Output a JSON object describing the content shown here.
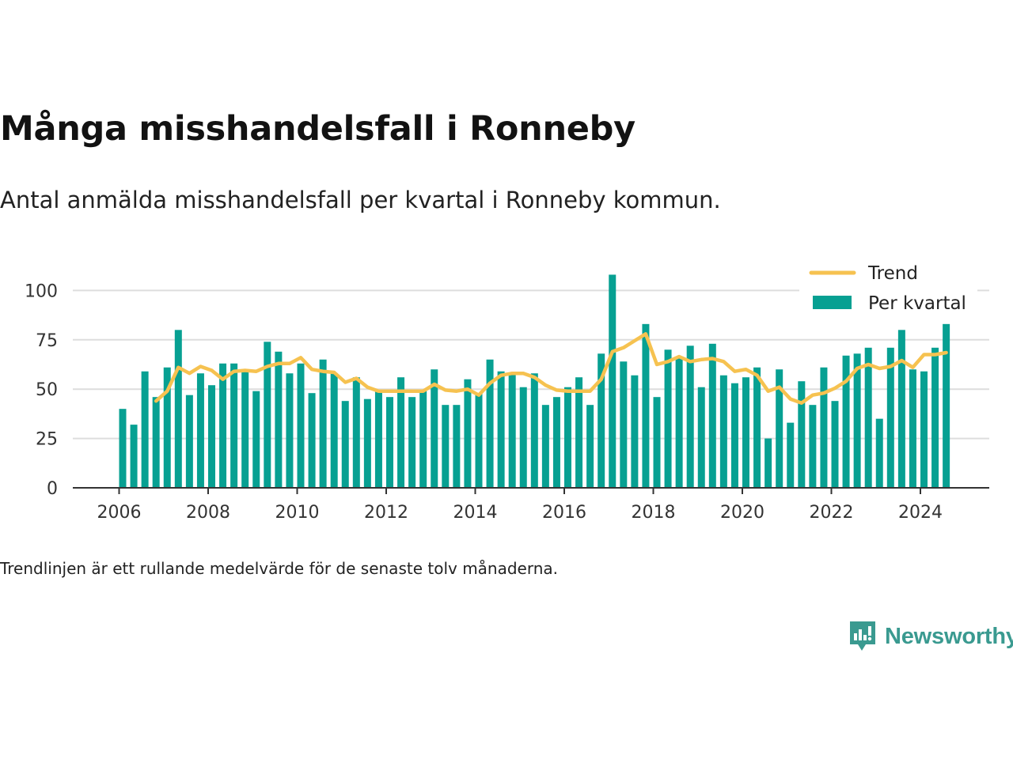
{
  "title": "Många misshandelsfall i Ronneby",
  "subtitle": "Antal anmälda misshandelsfall per kvartal i Ronneby kommun.",
  "footnote": "Trendlinjen är ett rullande medelvärde för de senaste tolv månaderna.",
  "brand": {
    "name": "Newsworthy",
    "icon": "newsworthy-logo-icon"
  },
  "colors": {
    "bars": "#07a092",
    "trend": "#f6c250",
    "grid": "#dddddd",
    "axis": "#333333"
  },
  "chart_data": {
    "type": "bar",
    "title": "Många misshandelsfall i Ronneby",
    "xlabel": "",
    "ylabel": "",
    "ylim": [
      0,
      110
    ],
    "yticks": [
      0,
      25,
      50,
      75,
      100
    ],
    "xticks": [
      "2006",
      "2008",
      "2010",
      "2012",
      "2014",
      "2016",
      "2018",
      "2020",
      "2022",
      "2024"
    ],
    "grid": true,
    "legend_position": "top-right",
    "x_start": {
      "year": 2006,
      "quarter": 1
    },
    "series": [
      {
        "name": "Per kvartal",
        "type": "bar",
        "values": [
          40,
          32,
          59,
          46,
          61,
          80,
          47,
          58,
          52,
          63,
          63,
          60,
          49,
          74,
          69,
          58,
          63,
          48,
          65,
          58,
          44,
          56,
          45,
          49,
          46,
          56,
          46,
          49,
          60,
          42,
          42,
          55,
          48,
          65,
          59,
          58,
          51,
          58,
          42,
          46,
          51,
          56,
          42,
          68,
          108,
          64,
          57,
          83,
          46,
          70,
          66,
          72,
          51,
          73,
          57,
          53,
          56,
          61,
          25,
          60,
          33,
          54,
          42,
          61,
          44,
          67,
          68,
          71,
          35,
          71,
          80,
          60,
          59,
          71,
          83
        ]
      },
      {
        "name": "Trend",
        "type": "line",
        "values": [
          null,
          null,
          null,
          44,
          49,
          61,
          58,
          61.5,
          59.5,
          55,
          59,
          59.5,
          59,
          61.5,
          63,
          63,
          66,
          60,
          59,
          58.5,
          53.5,
          55.5,
          51,
          49,
          49,
          49,
          49,
          49,
          52.5,
          49.5,
          49,
          50,
          47,
          53,
          57,
          58,
          58,
          56,
          52,
          49.5,
          49,
          49,
          49,
          55,
          69,
          71,
          74.5,
          78,
          62.5,
          64,
          66.5,
          64,
          65,
          65.5,
          64,
          59,
          60,
          57,
          49,
          51,
          45,
          43,
          47,
          48,
          50.5,
          54,
          60.5,
          62.5,
          60.5,
          61.5,
          64.5,
          61,
          67.5,
          67.5,
          68.5
        ]
      }
    ]
  }
}
